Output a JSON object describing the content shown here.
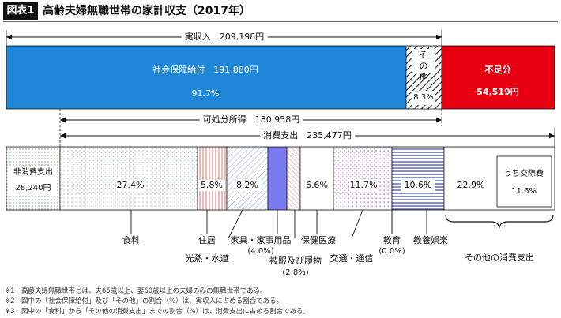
{
  "figure": {
    "badge": "図表1",
    "title": "高齢夫婦無職世帯の家計収支（2017年）"
  },
  "income": {
    "label": "実収入",
    "value": "209,198円",
    "social_security": {
      "label": "社会保障給付",
      "value": "191,880円",
      "pct": "91.7%"
    },
    "other": {
      "label": "その他",
      "pct": "8.3%"
    },
    "shortfall": {
      "label": "不足分",
      "value": "54,519円"
    }
  },
  "disposable": {
    "label": "可処分所得",
    "value": "180,958円"
  },
  "consumption": {
    "label": "消費支出",
    "value": "235,477円"
  },
  "non_consumption": {
    "label": "非消費支出",
    "value": "28,240円"
  },
  "categories": [
    {
      "key": "food",
      "name": "食料",
      "pct": "27.4%"
    },
    {
      "key": "housing",
      "name": "住居",
      "pct": "5.8%"
    },
    {
      "key": "utilities",
      "name": "光熱・水道",
      "pct": "8.2%"
    },
    {
      "key": "furniture",
      "name": "家具・家事用品",
      "pct": "(4.0%)"
    },
    {
      "key": "clothing",
      "name": "被服及び履物",
      "pct": "(2.8%)"
    },
    {
      "key": "health",
      "name": "保健医療",
      "pct": "6.6%"
    },
    {
      "key": "transport",
      "name": "交通・通信",
      "pct": "11.7%"
    },
    {
      "key": "education",
      "name": "教育",
      "pct": "(0.0%)"
    },
    {
      "key": "recreation",
      "name": "教養娯楽",
      "pct": "10.6%"
    },
    {
      "key": "other_consumption",
      "name": "その他の消費支出",
      "pct": "22.9%"
    }
  ],
  "social_expenses": {
    "label": "うち交際費",
    "pct": "11.6%"
  },
  "notes": [
    "※1　高齢夫婦無職世帯とは、夫65歳以上、妻60歳以上の夫婦のみの無職世帯である。",
    "※2　図中の「社会保障給付」及び「その他」の割合（%）は、実収入に占める割合である。",
    "※3　図中の「食料」から「その他の消費支出」までの割合（%）は、消費支出に占める割合である。"
  ],
  "colors": {
    "social_security": "#1f86d8",
    "shortfall": "#e60012",
    "furniture": "#7b7bf0",
    "clothing": "#e89a9a",
    "recreation": "#3a4a9a",
    "dot": "#9ab09a"
  }
}
